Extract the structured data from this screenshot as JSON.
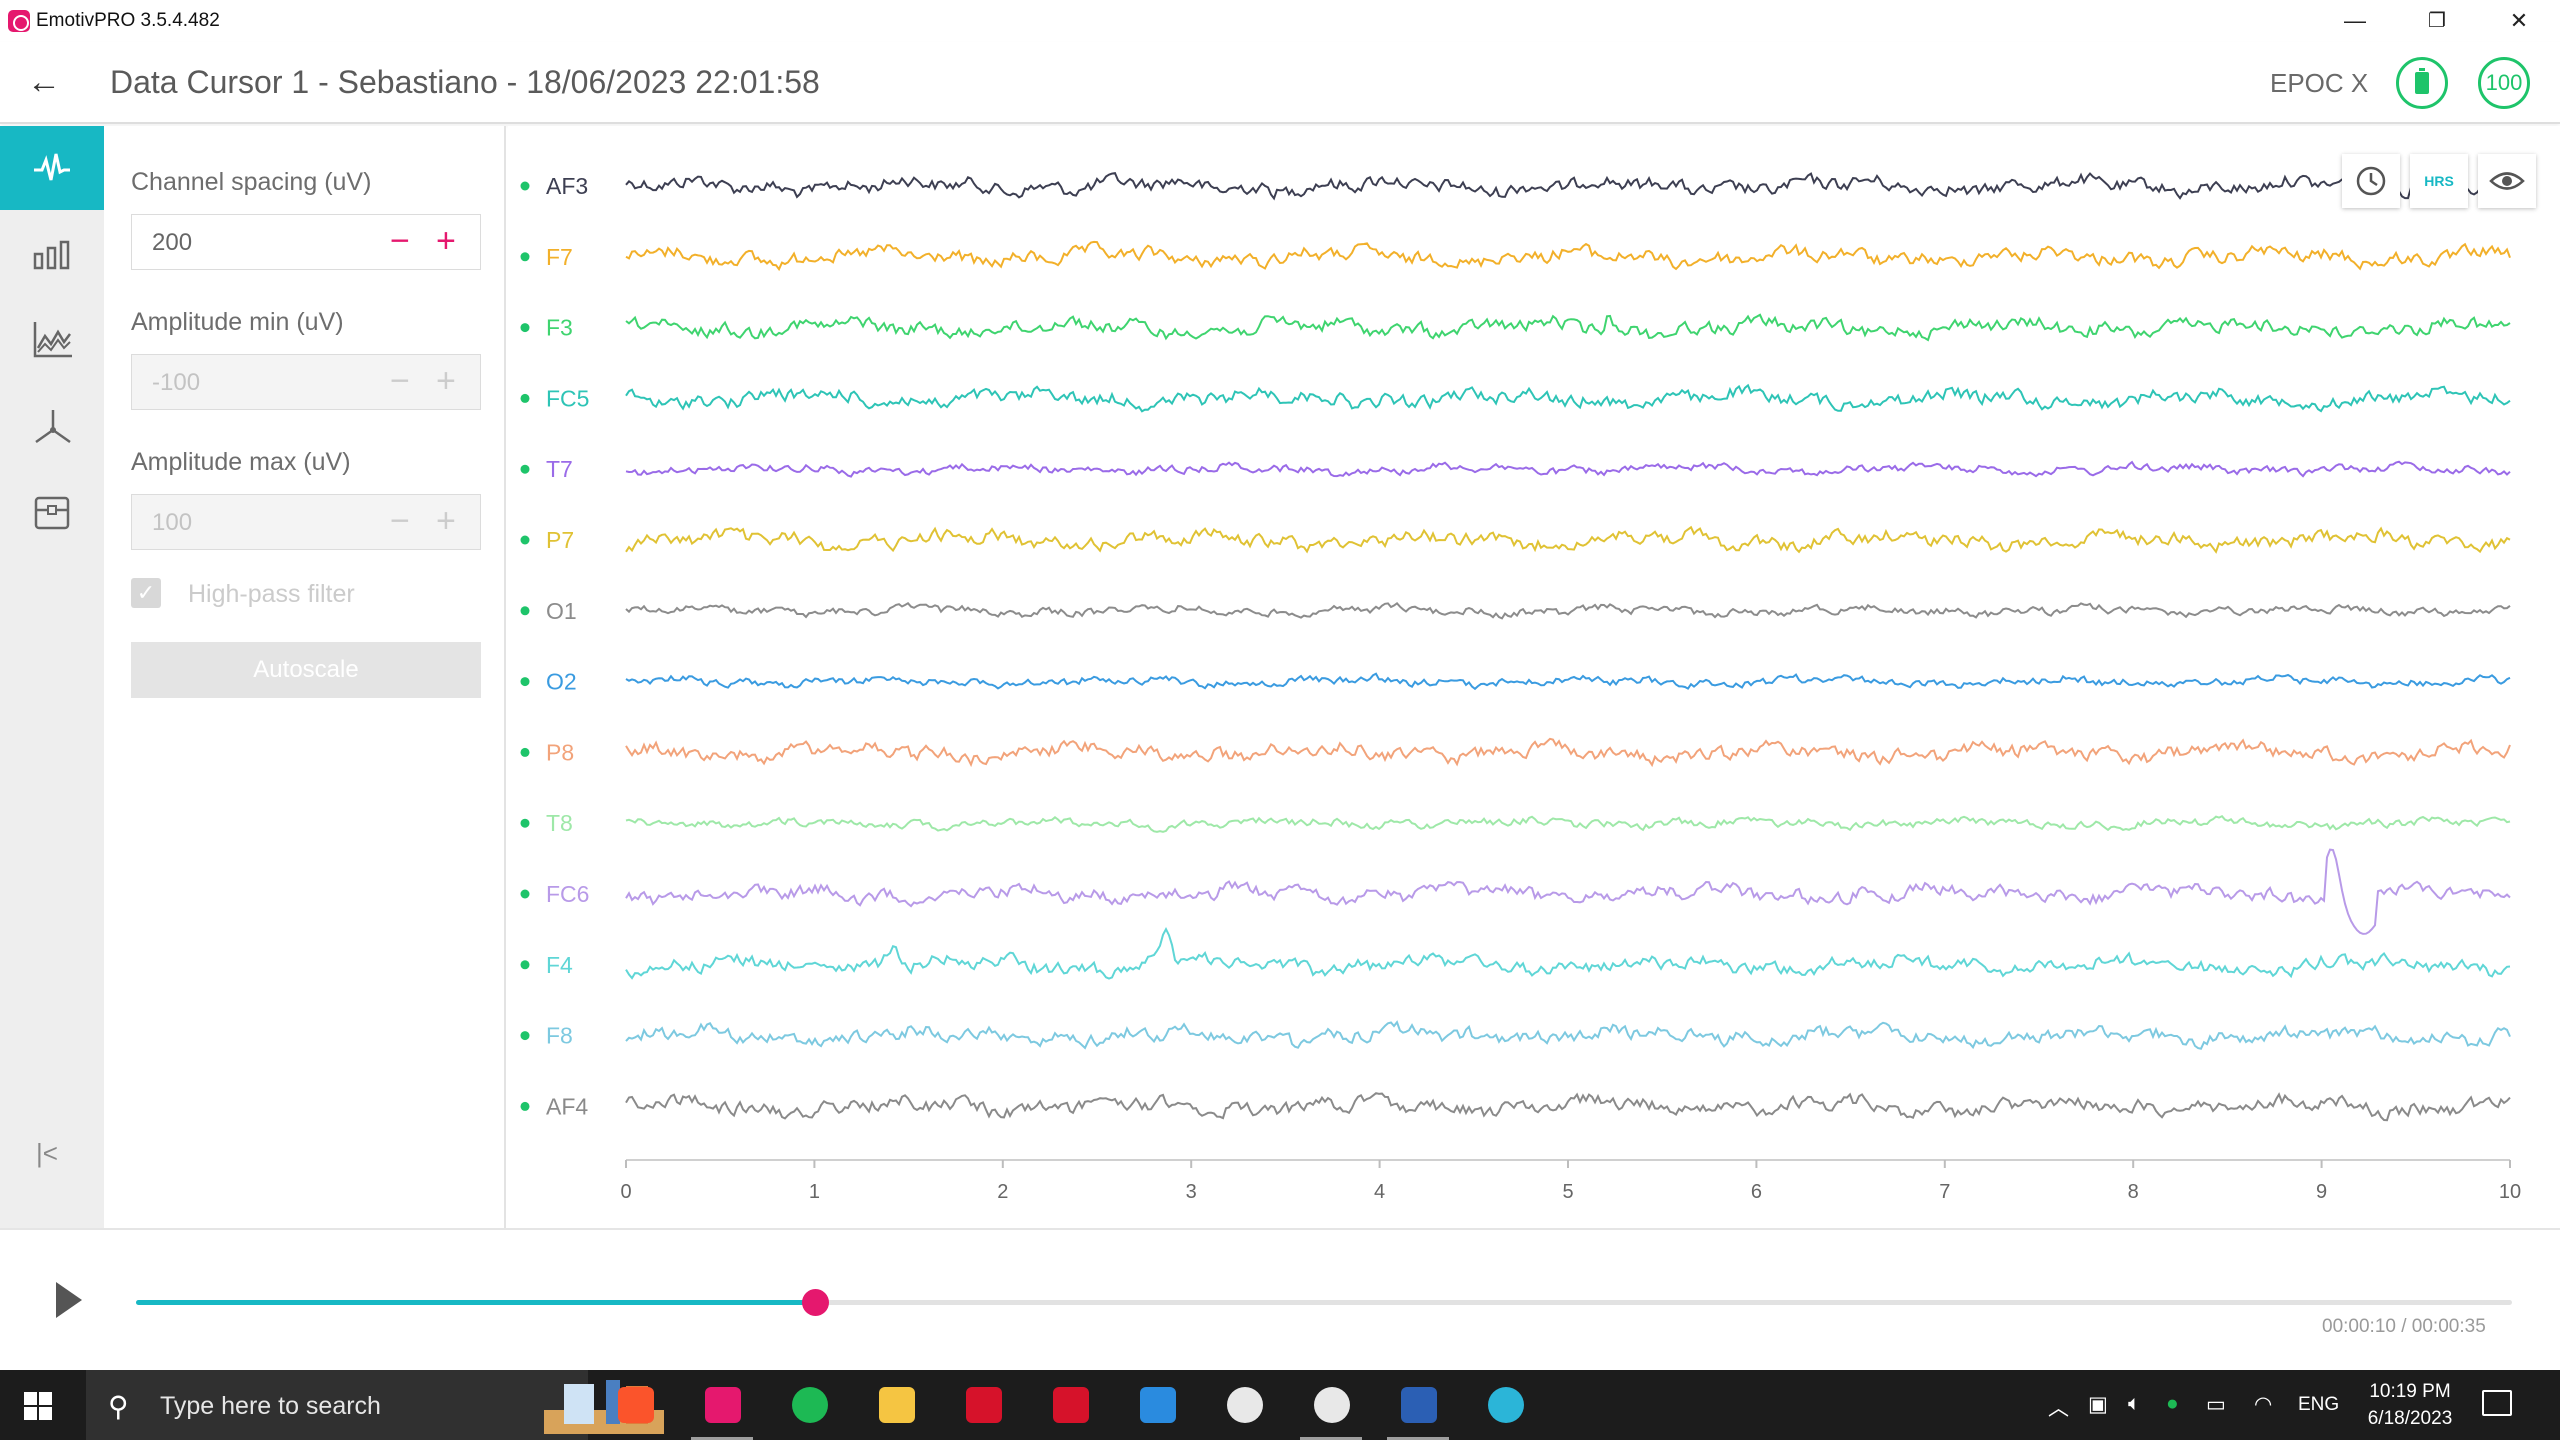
{
  "window": {
    "title": "EmotivPRO 3.5.4.482",
    "minimize_glyph": "—",
    "restore_glyph": "❐",
    "close_glyph": "✕"
  },
  "header": {
    "back_glyph": "←",
    "title": "Data Cursor 1 - Sebastiano - 18/06/2023 22:01:58",
    "device": "EPOC X",
    "signal_quality": "100",
    "battery_color": "#1ec46a"
  },
  "sidebar": {
    "items": [
      {
        "icon": "waveform-icon",
        "active": true
      },
      {
        "icon": "bar-chart-icon",
        "active": false
      },
      {
        "icon": "line-chart-icon",
        "active": false
      },
      {
        "icon": "motion-axes-icon",
        "active": false
      },
      {
        "icon": "archive-icon",
        "active": false
      }
    ],
    "collapse_glyph": "|<"
  },
  "settings": {
    "channel_spacing_label": "Channel spacing (uV)",
    "channel_spacing_value": "200",
    "amp_min_label": "Amplitude min (uV)",
    "amp_min_value": "-100",
    "amp_max_label": "Amplitude max (uV)",
    "amp_max_value": "100",
    "minus_glyph": "−",
    "plus_glyph": "+",
    "highpass_label": "High-pass filter",
    "highpass_checked": true,
    "autoscale_label": "Autoscale"
  },
  "chart_tools": {
    "hrs_label": "HRS"
  },
  "chart_data": {
    "type": "line",
    "xlim": [
      0,
      10
    ],
    "xticks": [
      "0",
      "1",
      "2",
      "3",
      "4",
      "5",
      "6",
      "7",
      "8",
      "9",
      "10"
    ],
    "channels": [
      {
        "name": "AF3",
        "color": "#3d3f52"
      },
      {
        "name": "F7",
        "color": "#f2b02a"
      },
      {
        "name": "F3",
        "color": "#3fd46f"
      },
      {
        "name": "FC5",
        "color": "#2ec4b6"
      },
      {
        "name": "T7",
        "color": "#9a6be8"
      },
      {
        "name": "P7",
        "color": "#e0c234"
      },
      {
        "name": "O1",
        "color": "#8c8c8c"
      },
      {
        "name": "O2",
        "color": "#3a9be0"
      },
      {
        "name": "P8",
        "color": "#f2a37a"
      },
      {
        "name": "T8",
        "color": "#9ee8a8"
      },
      {
        "name": "FC6",
        "color": "#b89ae8"
      },
      {
        "name": "F4",
        "color": "#5fd6d6"
      },
      {
        "name": "F8",
        "color": "#7dc9e0"
      },
      {
        "name": "AF4",
        "color": "#8a8a8a"
      }
    ],
    "status_dot_color": "#1ec46a"
  },
  "playback": {
    "progress": 0.2857,
    "time": "00:00:10 / 00:00:35",
    "accent": "#17b8c4",
    "thumb_color": "#e5186e"
  },
  "taskbar": {
    "search_placeholder": "Type here to search",
    "apps": [
      {
        "name": "brave",
        "color": "#fb542b",
        "running": false
      },
      {
        "name": "emotiv",
        "color": "#e5186e",
        "running": true
      },
      {
        "name": "spotify",
        "color": "#1db954",
        "running": false
      },
      {
        "name": "file-explorer",
        "color": "#f5c542",
        "running": false
      },
      {
        "name": "amd-software",
        "color": "#d6122a",
        "running": false
      },
      {
        "name": "epic",
        "color": "#d6122a",
        "running": false
      },
      {
        "name": "vs-code",
        "color": "#2a8bdf",
        "running": false
      },
      {
        "name": "steam",
        "color": "#e8e8e8",
        "running": false
      },
      {
        "name": "github-desktop",
        "color": "#e8e8e8",
        "running": true
      },
      {
        "name": "word",
        "color": "#2b5fb4",
        "running": true
      },
      {
        "name": "edge",
        "color": "#2bb5d8",
        "running": false
      }
    ],
    "language": "ENG",
    "time": "10:19 PM",
    "date": "6/18/2023"
  }
}
